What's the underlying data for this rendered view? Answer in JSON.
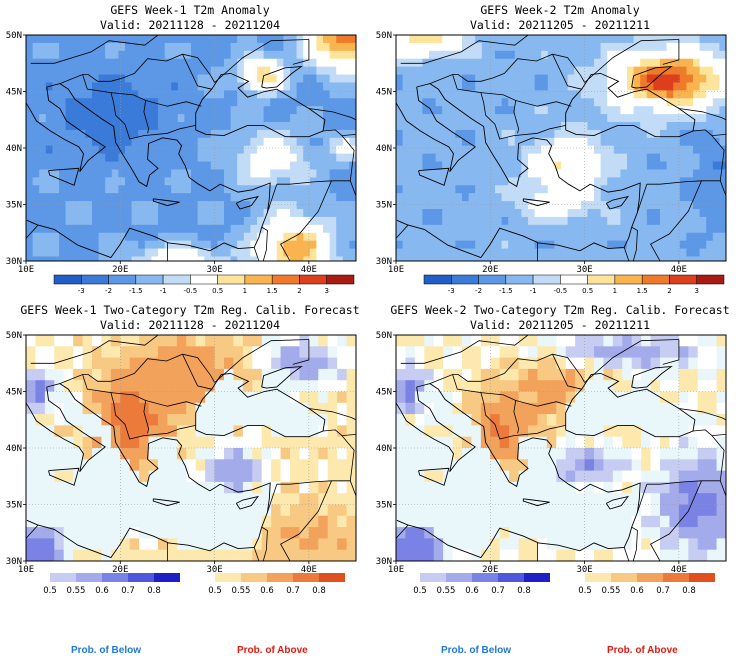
{
  "panels": [
    {
      "title": "GEFS Week-1 T2m Anomaly",
      "valid": "Valid: 20211128 - 20211204"
    },
    {
      "title": "GEFS Week-2 T2m Anomaly",
      "valid": "Valid: 20211205 - 20211211"
    },
    {
      "title": "GEFS Week-1 Two-Category T2m Reg. Calib. Forecast",
      "valid": "Valid: 20211128 - 20211204"
    },
    {
      "title": "GEFS Week-2 Two-Category T2m Reg. Calib. Forecast",
      "valid": "Valid: 20211205 - 20211211"
    }
  ],
  "axes": {
    "lat_labels": [
      "50N",
      "45N",
      "40N",
      "35N",
      "30N"
    ],
    "lon_labels": [
      "10E",
      "20E",
      "30E",
      "40E"
    ]
  },
  "anomaly_colorbar": {
    "labels": [
      "-3",
      "-2",
      "-1.5",
      "-1",
      "-0.5",
      "0.5",
      "1",
      "1.5",
      "2",
      "3"
    ],
    "colors": [
      "#1f5fc7",
      "#3a7ad9",
      "#5c98e6",
      "#88b8f0",
      "#c2dcf8",
      "#ffffff",
      "#fde49a",
      "#f9b450",
      "#f07a2a",
      "#dc3e1e",
      "#a91a10"
    ]
  },
  "prob_colorbars": {
    "below": {
      "labels": [
        "0.5",
        "0.55",
        "0.6",
        "0.7",
        "0.8"
      ],
      "colors": [
        "#e9f7fb",
        "#c7cdf2",
        "#a3abeb",
        "#7b82e6",
        "#4f57dd",
        "#1f1fc6"
      ]
    },
    "above": {
      "labels": [
        "0.5",
        "0.55",
        "0.6",
        "0.7",
        "0.8"
      ],
      "colors": [
        "#ffffff",
        "#fde8ad",
        "#f8c982",
        "#f3a25c",
        "#ec7b3b",
        "#e0501d"
      ]
    }
  },
  "footer": {
    "below_label": "Prob. of Below",
    "above_label": "Prob. of Above",
    "below_color": "#1e78d8",
    "above_color": "#e01a10"
  }
}
